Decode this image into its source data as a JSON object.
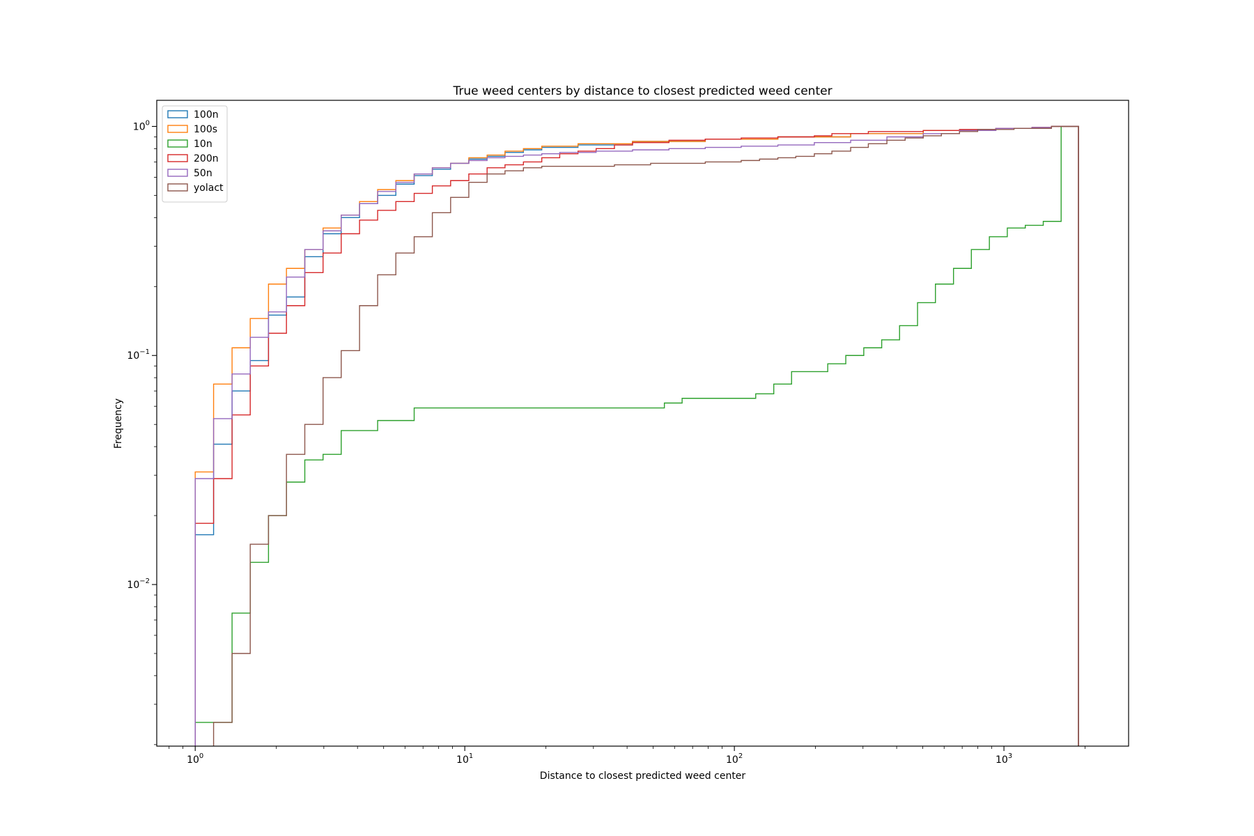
{
  "chart_data": {
    "type": "step-histogram",
    "title": "True weed centers by distance to closest predicted weed center",
    "xlabel": "Distance to closest predicted weed center",
    "ylabel": "Frequency",
    "xscale": "log",
    "yscale": "log",
    "xlim": [
      0.72,
      2900
    ],
    "ylim": [
      0.00197,
      1.3
    ],
    "grid": false,
    "legend_position": "top-left",
    "x_ticks": [
      {
        "value": 1,
        "base": "10",
        "exp": "0"
      },
      {
        "value": 10,
        "base": "10",
        "exp": "1"
      },
      {
        "value": 100,
        "base": "10",
        "exp": "2"
      },
      {
        "value": 1000,
        "base": "10",
        "exp": "3"
      }
    ],
    "y_ticks": [
      {
        "value": 1,
        "base": "10",
        "exp": "0"
      },
      {
        "value": 0.1,
        "base": "10",
        "exp": "−1"
      },
      {
        "value": 0.01,
        "base": "10",
        "exp": "−2"
      }
    ],
    "series": [
      {
        "name": "100n",
        "color": "#1f77b4",
        "steps": [
          [
            1.0,
            0.0165
          ],
          [
            1.17,
            0.041
          ],
          [
            1.37,
            0.07
          ],
          [
            1.6,
            0.095
          ],
          [
            1.87,
            0.15
          ],
          [
            2.18,
            0.18
          ],
          [
            2.55,
            0.27
          ],
          [
            2.98,
            0.34
          ],
          [
            3.48,
            0.4
          ],
          [
            4.07,
            0.46
          ],
          [
            4.75,
            0.5
          ],
          [
            5.55,
            0.56
          ],
          [
            6.49,
            0.61
          ],
          [
            7.58,
            0.65
          ],
          [
            8.86,
            0.69
          ],
          [
            10.35,
            0.72
          ],
          [
            12.1,
            0.74
          ],
          [
            14.1,
            0.77
          ],
          [
            16.5,
            0.79
          ],
          [
            19.3,
            0.81
          ],
          [
            26.3,
            0.83
          ],
          [
            41.9,
            0.86
          ],
          [
            78.0,
            0.88
          ],
          [
            145.0,
            0.9
          ],
          [
            270.0,
            0.93
          ],
          [
            502.0,
            0.96
          ],
          [
            933.0,
            0.98
          ],
          [
            1270.0,
            0.99
          ],
          [
            1500.0,
            1.0
          ],
          [
            1890.0,
            0.0015
          ]
        ]
      },
      {
        "name": "100s",
        "color": "#ff7f0e",
        "steps": [
          [
            1.0,
            0.031
          ],
          [
            1.17,
            0.075
          ],
          [
            1.37,
            0.108
          ],
          [
            1.6,
            0.145
          ],
          [
            1.87,
            0.205
          ],
          [
            2.18,
            0.24
          ],
          [
            2.55,
            0.29
          ],
          [
            2.98,
            0.36
          ],
          [
            3.48,
            0.41
          ],
          [
            4.07,
            0.47
          ],
          [
            4.75,
            0.53
          ],
          [
            5.55,
            0.58
          ],
          [
            6.49,
            0.62
          ],
          [
            7.58,
            0.66
          ],
          [
            8.86,
            0.69
          ],
          [
            10.35,
            0.73
          ],
          [
            12.1,
            0.75
          ],
          [
            14.1,
            0.78
          ],
          [
            16.5,
            0.8
          ],
          [
            19.3,
            0.82
          ],
          [
            26.3,
            0.84
          ],
          [
            41.9,
            0.86
          ],
          [
            78.0,
            0.88
          ],
          [
            145.0,
            0.9
          ],
          [
            270.0,
            0.93
          ],
          [
            502.0,
            0.96
          ],
          [
            933.0,
            0.98
          ],
          [
            1270.0,
            0.99
          ],
          [
            1500.0,
            1.0
          ],
          [
            1890.0,
            0.0015
          ]
        ]
      },
      {
        "name": "10n",
        "color": "#2ca02c",
        "steps": [
          [
            1.0,
            0.0025
          ],
          [
            1.37,
            0.0075
          ],
          [
            1.6,
            0.0125
          ],
          [
            1.87,
            0.02
          ],
          [
            2.18,
            0.028
          ],
          [
            2.55,
            0.035
          ],
          [
            2.98,
            0.037
          ],
          [
            3.48,
            0.047
          ],
          [
            4.75,
            0.052
          ],
          [
            6.49,
            0.059
          ],
          [
            55.0,
            0.062
          ],
          [
            64.0,
            0.065
          ],
          [
            120.0,
            0.068
          ],
          [
            140.0,
            0.075
          ],
          [
            163.0,
            0.085
          ],
          [
            222.0,
            0.092
          ],
          [
            259.0,
            0.1
          ],
          [
            302.0,
            0.108
          ],
          [
            352.0,
            0.117
          ],
          [
            410.0,
            0.135
          ],
          [
            478.0,
            0.17
          ],
          [
            557.0,
            0.205
          ],
          [
            650.0,
            0.24
          ],
          [
            757.0,
            0.29
          ],
          [
            883.0,
            0.33
          ],
          [
            1029.0,
            0.36
          ],
          [
            1200.0,
            0.37
          ],
          [
            1399.0,
            0.385
          ],
          [
            1630.0,
            1.0
          ],
          [
            1890.0,
            0.0015
          ]
        ]
      },
      {
        "name": "200n",
        "color": "#d62728",
        "steps": [
          [
            1.0,
            0.0185
          ],
          [
            1.17,
            0.029
          ],
          [
            1.37,
            0.055
          ],
          [
            1.6,
            0.09
          ],
          [
            1.87,
            0.125
          ],
          [
            2.18,
            0.165
          ],
          [
            2.55,
            0.23
          ],
          [
            2.98,
            0.28
          ],
          [
            3.48,
            0.34
          ],
          [
            4.07,
            0.39
          ],
          [
            4.75,
            0.43
          ],
          [
            5.55,
            0.47
          ],
          [
            6.49,
            0.51
          ],
          [
            7.58,
            0.55
          ],
          [
            8.86,
            0.58
          ],
          [
            10.35,
            0.62
          ],
          [
            12.1,
            0.66
          ],
          [
            14.1,
            0.68
          ],
          [
            16.5,
            0.7
          ],
          [
            19.3,
            0.73
          ],
          [
            22.5,
            0.76
          ],
          [
            26.3,
            0.78
          ],
          [
            30.7,
            0.8
          ],
          [
            35.9,
            0.83
          ],
          [
            41.9,
            0.85
          ],
          [
            57.2,
            0.87
          ],
          [
            78.0,
            0.88
          ],
          [
            106.0,
            0.89
          ],
          [
            145.0,
            0.9
          ],
          [
            198.0,
            0.91
          ],
          [
            230.0,
            0.93
          ],
          [
            314.0,
            0.95
          ],
          [
            502.0,
            0.96
          ],
          [
            684.0,
            0.97
          ],
          [
            933.0,
            0.98
          ],
          [
            1270.0,
            0.99
          ],
          [
            1500.0,
            1.0
          ],
          [
            1890.0,
            0.0015
          ]
        ]
      },
      {
        "name": "50n",
        "color": "#9467bd",
        "steps": [
          [
            1.0,
            0.029
          ],
          [
            1.17,
            0.053
          ],
          [
            1.37,
            0.083
          ],
          [
            1.6,
            0.12
          ],
          [
            1.87,
            0.155
          ],
          [
            2.18,
            0.22
          ],
          [
            2.55,
            0.29
          ],
          [
            2.98,
            0.35
          ],
          [
            3.48,
            0.41
          ],
          [
            4.07,
            0.46
          ],
          [
            4.75,
            0.52
          ],
          [
            5.55,
            0.57
          ],
          [
            6.49,
            0.62
          ],
          [
            7.58,
            0.66
          ],
          [
            8.86,
            0.69
          ],
          [
            10.35,
            0.71
          ],
          [
            12.1,
            0.73
          ],
          [
            14.1,
            0.74
          ],
          [
            16.5,
            0.75
          ],
          [
            19.3,
            0.76
          ],
          [
            22.5,
            0.77
          ],
          [
            30.7,
            0.78
          ],
          [
            41.9,
            0.79
          ],
          [
            57.2,
            0.8
          ],
          [
            78.0,
            0.81
          ],
          [
            106.0,
            0.82
          ],
          [
            145.0,
            0.83
          ],
          [
            198.0,
            0.85
          ],
          [
            270.0,
            0.87
          ],
          [
            368.0,
            0.9
          ],
          [
            502.0,
            0.93
          ],
          [
            684.0,
            0.96
          ],
          [
            933.0,
            0.98
          ],
          [
            1270.0,
            0.99
          ],
          [
            1500.0,
            1.0
          ],
          [
            1890.0,
            0.0015
          ]
        ]
      },
      {
        "name": "yolact",
        "color": "#8c564b",
        "steps": [
          [
            1.17,
            0.0025
          ],
          [
            1.37,
            0.005
          ],
          [
            1.6,
            0.015
          ],
          [
            1.87,
            0.02
          ],
          [
            2.18,
            0.037
          ],
          [
            2.55,
            0.05
          ],
          [
            2.98,
            0.08
          ],
          [
            3.48,
            0.105
          ],
          [
            4.07,
            0.165
          ],
          [
            4.75,
            0.225
          ],
          [
            5.55,
            0.28
          ],
          [
            6.49,
            0.33
          ],
          [
            7.58,
            0.42
          ],
          [
            8.86,
            0.49
          ],
          [
            10.35,
            0.57
          ],
          [
            12.1,
            0.62
          ],
          [
            14.1,
            0.64
          ],
          [
            16.5,
            0.66
          ],
          [
            19.3,
            0.67
          ],
          [
            35.9,
            0.68
          ],
          [
            48.9,
            0.69
          ],
          [
            78.0,
            0.7
          ],
          [
            106.0,
            0.71
          ],
          [
            124.0,
            0.72
          ],
          [
            145.0,
            0.73
          ],
          [
            169.0,
            0.74
          ],
          [
            198.0,
            0.76
          ],
          [
            230.0,
            0.78
          ],
          [
            270.0,
            0.81
          ],
          [
            314.0,
            0.84
          ],
          [
            368.0,
            0.87
          ],
          [
            430.0,
            0.89
          ],
          [
            502.0,
            0.91
          ],
          [
            586.0,
            0.93
          ],
          [
            684.0,
            0.95
          ],
          [
            799.0,
            0.97
          ],
          [
            1090.0,
            0.98
          ],
          [
            1500.0,
            1.0
          ],
          [
            1890.0,
            0.0015
          ]
        ]
      }
    ]
  }
}
